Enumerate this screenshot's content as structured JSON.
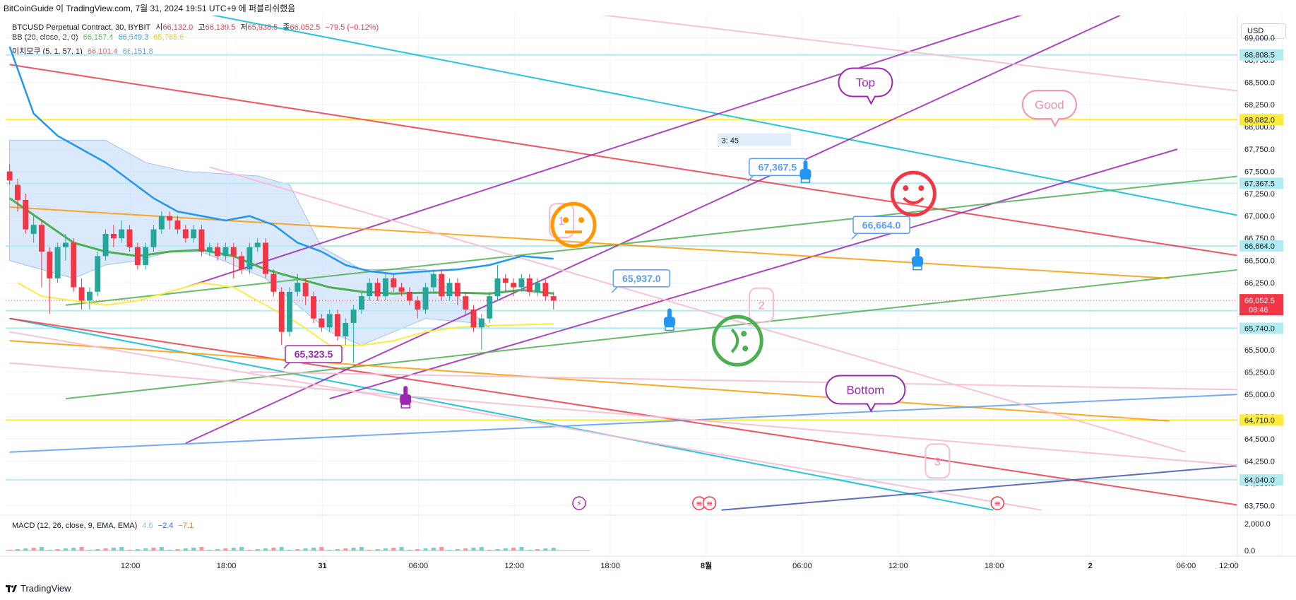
{
  "header": {
    "source": "BitCoinGuide 이 TradingView.com, 7월 31, 2024 19:51 UTC+9 에 퍼블리쉬했음"
  },
  "legend": {
    "symbol": "BTCUSD Perpetual Contract, 30, BYBIT",
    "open_label": "시",
    "open": "66,132.0",
    "high_label": "고",
    "high": "66,139.5",
    "low_label": "저",
    "low": "65,938.5",
    "close_label": "종",
    "close": "66,052.5",
    "change": "−79.5 (−0.12%)",
    "bb_name": "BB (20, close, 2, 0)",
    "bb_basis": "66,157.4",
    "bb_upper": "66,549.3",
    "bb_lower": "65,765.6",
    "ichi_name": "이치모쿠 (5, 1, 57, 1)",
    "ichi_a": "66,101.4",
    "ichi_b": "66,151.8",
    "macd_name": "MACD (12, 26, close, 9, EMA, EMA)",
    "macd_hist": "4.6",
    "macd_line": "−2.4",
    "macd_signal": "−7.1"
  },
  "currency": "USD",
  "brand": "TradingView",
  "colors": {
    "up": "#26a69a",
    "down": "#f23645",
    "bb": "#2196f3",
    "yellow": "#ffeb3b",
    "green_line": "#4caf50",
    "purple": "#9c27b0",
    "cyan": "#00bcd4",
    "red_line": "#f23645",
    "orange": "#ff9800",
    "pink": "#f8bbd0",
    "blue_line": "#5b9cf6",
    "navy": "#3f51b5",
    "cloud": "#cfe2fb"
  },
  "chart_data": {
    "type": "candlestick",
    "title": "BTCUSD Perpetual Contract, 30, BYBIT",
    "ylim": [
      63650,
      69250
    ],
    "y_ticks": [
      "69,000.0",
      "68,750.0",
      "68,500.0",
      "68,250.0",
      "68,000.0",
      "67,750.0",
      "67,500.0",
      "67,250.0",
      "67,000.0",
      "66,750.0",
      "66,500.0",
      "66,250.0",
      "66,000.0",
      "65,750.0",
      "65,500.0",
      "65,250.0",
      "65,000.0",
      "64,750.0",
      "64,500.0",
      "64,250.0",
      "64,000.0",
      "63,750.0"
    ],
    "y_tick_values": [
      69000,
      68750,
      68500,
      68250,
      68000,
      67750,
      67500,
      67250,
      67000,
      66750,
      66500,
      66250,
      66000,
      65750,
      65500,
      65250,
      65000,
      64750,
      64500,
      64250,
      64000,
      63750
    ],
    "x_ticks": [
      "12:00",
      "18:00",
      "31",
      "06:00",
      "12:00",
      "18:00",
      "8월",
      "06:00",
      "12:00",
      "18:00",
      "2",
      "06:00",
      "12:00"
    ],
    "x_tick_bars": [
      15.1,
      27.1,
      39.1,
      51.1,
      63.1,
      75.1,
      87.1,
      99.1,
      111.1,
      123.1,
      135.1,
      147.1,
      159.1
    ],
    "bars_total": 154,
    "candles": [
      [
        0,
        67500,
        67400,
        67580,
        67350
      ],
      [
        1,
        67350,
        67180,
        67420,
        67050
      ],
      [
        2,
        67180,
        66850,
        67250,
        66800
      ],
      [
        3,
        66800,
        66900,
        67000,
        66700
      ],
      [
        4,
        66900,
        66600,
        66950,
        66200
      ],
      [
        5,
        66600,
        66300,
        66650,
        65900
      ],
      [
        6,
        66300,
        66650,
        66700,
        66250
      ],
      [
        7,
        66650,
        66700,
        66800,
        66500
      ],
      [
        8,
        66700,
        66200,
        66750,
        66150
      ],
      [
        9,
        66200,
        66050,
        66300,
        65950
      ],
      [
        10,
        66050,
        66150,
        66200,
        65950
      ],
      [
        11,
        66150,
        66550,
        66600,
        66100
      ],
      [
        12,
        66550,
        66800,
        66850,
        66500
      ],
      [
        13,
        66800,
        66750,
        66900,
        66650
      ],
      [
        14,
        66750,
        66850,
        66950,
        66700
      ],
      [
        15,
        66850,
        66650,
        66900,
        66600
      ],
      [
        16,
        66650,
        66450,
        66700,
        66400
      ],
      [
        17,
        66450,
        66650,
        66700,
        66400
      ],
      [
        18,
        66650,
        66850,
        66900,
        66600
      ],
      [
        19,
        66850,
        67000,
        67050,
        66800
      ],
      [
        20,
        67000,
        66950,
        67050,
        66850
      ],
      [
        21,
        66950,
        66850,
        67000,
        66800
      ],
      [
        22,
        66850,
        66750,
        66900,
        66700
      ],
      [
        23,
        66750,
        66850,
        66900,
        66700
      ],
      [
        24,
        66850,
        66600,
        66900,
        66550
      ],
      [
        25,
        66600,
        66650,
        66700,
        66550
      ],
      [
        26,
        66650,
        66550,
        66700,
        66500
      ],
      [
        27,
        66550,
        66650,
        66700,
        66500
      ],
      [
        28,
        66650,
        66550,
        66700,
        66300
      ],
      [
        29,
        66550,
        66400,
        66600,
        66350
      ],
      [
        30,
        66400,
        66650,
        66700,
        66350
      ],
      [
        31,
        66650,
        66700,
        66750,
        66600
      ],
      [
        32,
        66700,
        66350,
        66750,
        66300
      ],
      [
        33,
        66350,
        66150,
        66400,
        66100
      ],
      [
        34,
        66150,
        65700,
        66200,
        65550
      ],
      [
        35,
        65700,
        66150,
        66200,
        65650
      ],
      [
        36,
        66150,
        66250,
        66350,
        66100
      ],
      [
        37,
        66250,
        66100,
        66300,
        66000
      ],
      [
        38,
        66100,
        65850,
        66150,
        65800
      ],
      [
        39,
        65850,
        65750,
        65900,
        65700
      ],
      [
        40,
        65750,
        65900,
        65950,
        65700
      ],
      [
        41,
        65900,
        65650,
        65950,
        65600
      ],
      [
        42,
        65650,
        65800,
        65850,
        65550
      ],
      [
        43,
        65800,
        65950,
        66000,
        65350
      ],
      [
        44,
        65950,
        66100,
        66150,
        65900
      ],
      [
        45,
        66100,
        66250,
        66300,
        66050
      ],
      [
        46,
        66250,
        66100,
        66300,
        66050
      ],
      [
        47,
        66100,
        66300,
        66350,
        66050
      ],
      [
        48,
        66300,
        66200,
        66350,
        66150
      ],
      [
        49,
        66200,
        66150,
        66250,
        66100
      ],
      [
        50,
        66150,
        66050,
        66200,
        66000
      ],
      [
        51,
        66050,
        65950,
        66100,
        65850
      ],
      [
        52,
        65950,
        66200,
        66250,
        65900
      ],
      [
        53,
        66200,
        66350,
        66400,
        66150
      ],
      [
        54,
        66350,
        66100,
        66400,
        66050
      ],
      [
        55,
        66100,
        66250,
        66300,
        66050
      ],
      [
        56,
        66250,
        66100,
        66300,
        66000
      ],
      [
        57,
        66100,
        65950,
        66150,
        65900
      ],
      [
        58,
        65950,
        65750,
        66000,
        65700
      ],
      [
        59,
        65750,
        65850,
        65900,
        65500
      ],
      [
        60,
        65850,
        66100,
        66150,
        65800
      ],
      [
        61,
        66100,
        66300,
        66450,
        66050
      ],
      [
        62,
        66300,
        66250,
        66350,
        66150
      ],
      [
        63,
        66250,
        66200,
        66300,
        66100
      ],
      [
        64,
        66200,
        66300,
        66350,
        66150
      ],
      [
        65,
        66300,
        66150,
        66350,
        66100
      ],
      [
        66,
        66150,
        66250,
        66300,
        66100
      ],
      [
        67,
        66250,
        66100,
        66300,
        66050
      ],
      [
        68,
        66100,
        66050,
        66150,
        65950
      ]
    ],
    "bollinger": {
      "basis": [
        [
          0,
          67200
        ],
        [
          4,
          66950
        ],
        [
          8,
          66700
        ],
        [
          12,
          66600
        ],
        [
          16,
          66550
        ],
        [
          20,
          66600
        ],
        [
          24,
          66620
        ],
        [
          28,
          66550
        ],
        [
          32,
          66400
        ],
        [
          36,
          66300
        ],
        [
          40,
          66200
        ],
        [
          44,
          66150
        ],
        [
          48,
          66130
        ],
        [
          52,
          66140
        ],
        [
          56,
          66140
        ],
        [
          60,
          66130
        ],
        [
          64,
          66170
        ],
        [
          68,
          66130
        ]
      ],
      "upper": [
        [
          0,
          68900
        ],
        [
          3,
          68150
        ],
        [
          6,
          67900
        ],
        [
          9,
          67750
        ],
        [
          12,
          67600
        ],
        [
          15,
          67400
        ],
        [
          18,
          67200
        ],
        [
          21,
          67050
        ],
        [
          24,
          67000
        ],
        [
          27,
          66950
        ],
        [
          30,
          67000
        ],
        [
          33,
          66900
        ],
        [
          36,
          66700
        ],
        [
          39,
          66600
        ],
        [
          42,
          66450
        ],
        [
          45,
          66380
        ],
        [
          48,
          66350
        ],
        [
          52,
          66380
        ],
        [
          56,
          66400
        ],
        [
          60,
          66450
        ],
        [
          64,
          66550
        ],
        [
          68,
          66520
        ]
      ],
      "lower": [
        [
          1,
          66250
        ],
        [
          4,
          66100
        ],
        [
          8,
          66050
        ],
        [
          12,
          66000
        ],
        [
          16,
          66050
        ],
        [
          20,
          66150
        ],
        [
          24,
          66250
        ],
        [
          28,
          66200
        ],
        [
          32,
          66000
        ],
        [
          36,
          65800
        ],
        [
          40,
          65550
        ],
        [
          44,
          65550
        ],
        [
          48,
          65600
        ],
        [
          52,
          65700
        ],
        [
          56,
          65750
        ],
        [
          60,
          65770
        ],
        [
          64,
          65780
        ],
        [
          68,
          65790
        ]
      ]
    },
    "ichimoku_cloud": [
      [
        0,
        67850
      ],
      [
        12,
        67850
      ],
      [
        17,
        67600
      ],
      [
        22,
        67500
      ],
      [
        31,
        67450
      ],
      [
        35,
        67350
      ],
      [
        39,
        66650
      ],
      [
        44,
        66400
      ],
      [
        52,
        66400
      ],
      [
        56,
        66100
      ],
      [
        58,
        65900
      ],
      [
        60,
        65750
      ],
      [
        58,
        65800
      ],
      [
        52,
        65850
      ],
      [
        44,
        65550
      ],
      [
        40,
        65700
      ],
      [
        36,
        66000
      ],
      [
        32,
        66300
      ],
      [
        28,
        66450
      ],
      [
        24,
        66600
      ],
      [
        20,
        66600
      ],
      [
        16,
        66500
      ],
      [
        12,
        66450
      ],
      [
        8,
        66300
      ],
      [
        4,
        66400
      ],
      [
        0,
        66500
      ]
    ],
    "horizontal_levels": [
      {
        "label": "68,808.5",
        "value": 68808.5
      },
      {
        "label": "68,082.0",
        "value": 68082.0
      },
      {
        "label": "67,367.5",
        "value": 67367.5
      },
      {
        "label": "66,664.0",
        "value": 66664.0
      },
      {
        "label": "65,937.0",
        "value": 65937.0
      },
      {
        "label": "65,740.0",
        "value": 65740.0
      },
      {
        "label": "64,710.0",
        "value": 64710.0
      },
      {
        "label": "64,040.0",
        "value": 64040.0
      }
    ],
    "current_price": {
      "label": "66,052.5",
      "countdown": "08:46",
      "value": 66052.5
    },
    "trend_lines": [
      {
        "name": "cyan-down",
        "color": "#00bcd4",
        "x1": 0,
        "y1": 69700,
        "x2": 154,
        "y2": 67000
      },
      {
        "name": "cyan-down-2",
        "color": "#00bcd4",
        "x1": 0,
        "y1": 65850,
        "x2": 123,
        "y2": 63700
      },
      {
        "name": "red-down",
        "color": "#f23645",
        "x1": 0,
        "y1": 68700,
        "x2": 154,
        "y2": 66550
      },
      {
        "name": "red-down-2",
        "color": "#f23645",
        "x1": 0,
        "y1": 65850,
        "x2": 154,
        "y2": 63750
      },
      {
        "name": "purple-up",
        "color": "#9c27b0",
        "x1": 22,
        "y1": 64450,
        "x2": 140,
        "y2": 69300
      },
      {
        "name": "purple-up-2",
        "color": "#9c27b0",
        "x1": 22,
        "y1": 66200,
        "x2": 140,
        "y2": 69650
      },
      {
        "name": "purple-up-3",
        "color": "#9c27b0",
        "x1": 40,
        "y1": 64950,
        "x2": 146,
        "y2": 67750
      },
      {
        "name": "green-up",
        "color": "#4caf50",
        "x1": 7,
        "y1": 66000,
        "x2": 154,
        "y2": 67450
      },
      {
        "name": "green-up-2",
        "color": "#4caf50",
        "x1": 7,
        "y1": 64950,
        "x2": 154,
        "y2": 66400
      },
      {
        "name": "orange-down",
        "color": "#ff9800",
        "x1": 0,
        "y1": 67100,
        "x2": 145,
        "y2": 66300
      },
      {
        "name": "orange-down-2",
        "color": "#ff9800",
        "x1": 0,
        "y1": 65600,
        "x2": 145,
        "y2": 64700
      },
      {
        "name": "blue-up",
        "color": "#5b9cf6",
        "x1": 0,
        "y1": 64350,
        "x2": 154,
        "y2": 65000
      },
      {
        "name": "navy-up",
        "color": "#3f51b5",
        "x1": 89,
        "y1": 63700,
        "x2": 154,
        "y2": 64200
      },
      {
        "name": "pink-1",
        "color": "#f8bbd0",
        "x1": 56,
        "y1": 69450,
        "x2": 154,
        "y2": 68400
      },
      {
        "name": "pink-2",
        "color": "#f8bbd0",
        "x1": 25,
        "y1": 67550,
        "x2": 147,
        "y2": 64350
      },
      {
        "name": "pink-3",
        "color": "#f8bbd0",
        "x1": 0,
        "y1": 65700,
        "x2": 129,
        "y2": 63700
      },
      {
        "name": "pink-4",
        "color": "#f8bbd0",
        "x1": 0,
        "y1": 65350,
        "x2": 154,
        "y2": 64200
      },
      {
        "name": "pink-5",
        "color": "#f8bbd0",
        "x1": 30,
        "y1": 65250,
        "x2": 154,
        "y2": 65050
      }
    ],
    "annotations": [
      {
        "text": "Good",
        "type": "speech-bubble",
        "x": 130,
        "y": 68250
      },
      {
        "text": "Top",
        "type": "speech-bubble",
        "x": 107,
        "y": 68500
      },
      {
        "text": "Bottom",
        "type": "speech-bubble",
        "x": 107,
        "y": 65050
      },
      {
        "text": "1",
        "type": "number-box",
        "x": 69,
        "y": 66950
      },
      {
        "text": "2",
        "type": "number-box",
        "x": 94,
        "y": 66000
      },
      {
        "text": "3",
        "type": "number-box",
        "x": 116,
        "y": 64250
      },
      {
        "text": "67,367.5",
        "type": "price-callout",
        "x": 96,
        "y": 67550
      },
      {
        "text": "66,664.0",
        "type": "price-callout",
        "x": 109,
        "y": 66900
      },
      {
        "text": "65,937.0",
        "type": "price-callout",
        "x": 79,
        "y": 66300
      },
      {
        "text": "65,323.5",
        "type": "price-callout",
        "x": 38,
        "y": 65450
      },
      {
        "text": "3: 45",
        "type": "label",
        "x": 89,
        "y": 67850
      }
    ],
    "macd": {
      "name": "MACD (12, 26, close, 9, EMA, EMA)",
      "y_ticks": [
        "2,000.0",
        "0.0"
      ]
    }
  }
}
